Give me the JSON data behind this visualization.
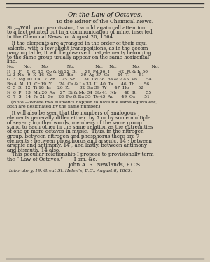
{
  "background_color": "#d8cebc",
  "border_color": "#333333",
  "title_italic": "On the Law of Octaves.",
  "subtitle": "To the Editor of the Chemical News.",
  "body_text": [
    "Sir,—With your permission, I would again call attention",
    "to a fact pointed out in a communication of mine, inserted",
    "in the Chemical News for August 20, 1864.",
    "",
    "   If the elements are arranged in the order of their equi-",
    "valents, with a few slight transpositions, as in the accom-",
    "panying table, it will be observed that elements belonging",
    "to the same group usually appear on the same horizontal",
    "line."
  ],
  "table_header": "No.      No.       No.          No.             No.    No.           No.        No.",
  "table_rows": [
    "H  1  F     8  Cl  15  Co & Ni 22  Br      29  Pd  36  I       42  Pt & Ir 50",
    "Li 2  Na    9  K   16  Cu      23  Rb      30  Ag  37  Cs      44  Tl       51",
    "G  3  Mg  10  Ca  17  Zn      25  Sr       31  Cd  38  Ba & V 45  Pb       54",
    "Bo 4  Al   11  Cr  19  Y       24  Ce & La 33  U   40  Ta      46  Th       56",
    "C  5  Si   12  Ti  18  In      26  Zr       32  Sn  39  W       47  Hg       52",
    "N  6  P    13  Mn 20  As      27  Di & Mo 34  Sb  41  Nb      48  Bi       55",
    "O  7  S    14  Fe  21  Se      28  Ro & Ru 35  Te  43  Au      49  Os       51"
  ],
  "note_text": [
    "(Note.—Where two elements happen to have the same equivalent,",
    "both are designated by the same number.)"
  ],
  "body_text2": [
    "   It will also be seen that the numbers of analogous",
    "elements generally differ either  by 7 or by some multiple",
    "of seven ; in other words, members of the same group",
    "stand to each other in the same relation as the extremities",
    "of one or more octaves in music.  Thus, in the nitrogen",
    "group, between nitrogen and phosphorus there are 7",
    "elements ; between phosphorus and arsenic, 14 ; between",
    "arsenic and antimony, 14 ; and lastly, between antimony",
    "and bismuth, 14 also.",
    "   This peculiar relationship I propose to provisionally term",
    "the “ Law of Octaves.”       I am, &c."
  ],
  "signature": "John A. R. Newlands, F.C.S.",
  "footer": "Laboratory, 19, Great St. Helen’s, E.C., August 8, 1865."
}
